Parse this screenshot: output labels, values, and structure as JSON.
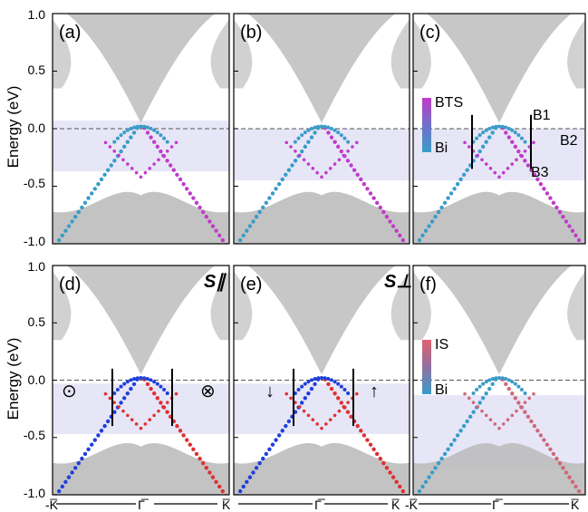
{
  "figure": {
    "ylabel": "Energy (eV)",
    "y_ticks": [
      "1.0",
      "0.5",
      "0.0",
      "-0.5",
      "-1.0"
    ],
    "k_labels": [
      "-K̅",
      "Γ̅",
      "K̅"
    ]
  },
  "panels": [
    {
      "label": "(a)",
      "band_color": "#e6e6f7",
      "band_range": [
        -0.37,
        0.07
      ]
    },
    {
      "label": "(b)",
      "band_color": "#e6e6f7",
      "band_range": [
        -0.45,
        0.0
      ]
    },
    {
      "label": "(c)",
      "band_color": "#e6e6f7",
      "band_range": [
        -0.45,
        0.0
      ],
      "legend": {
        "top": "BTS",
        "bottom": "Bi",
        "colors": [
          "#c03cc8",
          "#3a9cc8"
        ]
      },
      "annotations": [
        "B1",
        "B2",
        "B3"
      ]
    },
    {
      "label": "(d)",
      "band_color": "#e6e6f7",
      "band_range": [
        -0.47,
        -0.03
      ],
      "corner": "S∥",
      "symbols": [
        "⊙",
        "⊗"
      ]
    },
    {
      "label": "(e)",
      "band_color": "#e6e6f7",
      "band_range": [
        -0.47,
        -0.03
      ],
      "corner": "S⊥"
    },
    {
      "label": "(f)",
      "band_color": "#e6e6f7",
      "band_range": [
        -0.77,
        -0.13
      ],
      "legend": {
        "top": "IS",
        "bottom": "Bi",
        "colors": [
          "#e06070",
          "#3a9cc8"
        ]
      }
    }
  ],
  "chart_data": [
    {
      "type": "scatter",
      "title": "(a)",
      "ylabel": "Energy (eV)",
      "ylim": [
        -1.0,
        1.0
      ],
      "x_ticks": [
        "-K",
        "Γ",
        "K"
      ],
      "fermi_level": 0.0
    },
    {
      "type": "scatter",
      "title": "(b)",
      "ylim": [
        -1.0,
        1.0
      ],
      "fermi_level": 0.0
    },
    {
      "type": "scatter",
      "title": "(c)",
      "ylim": [
        -1.0,
        1.0
      ],
      "fermi_level": 0.0
    },
    {
      "type": "scatter",
      "title": "(d)",
      "ylim": [
        -1.0,
        1.0
      ],
      "fermi_level": 0.0
    },
    {
      "type": "scatter",
      "title": "(e)",
      "ylim": [
        -1.0,
        1.0
      ],
      "fermi_level": 0.0
    },
    {
      "type": "scatter",
      "title": "(f)",
      "ylim": [
        -1.0,
        1.0
      ],
      "fermi_level": 0.0
    }
  ]
}
